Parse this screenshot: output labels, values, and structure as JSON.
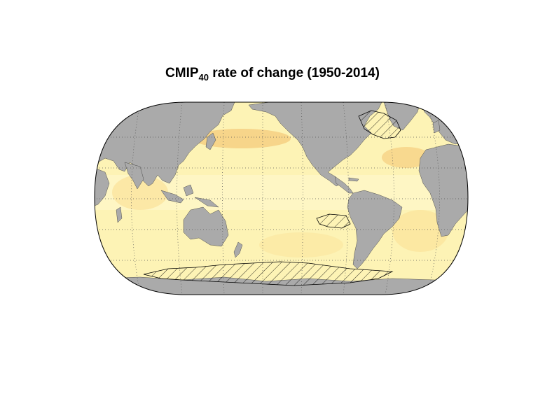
{
  "title": {
    "main": "CMIP",
    "subscript": "40",
    "rest": " rate of change (1950-2014)"
  },
  "map": {
    "projection": "Robinson-like, Pacific-centered",
    "colors": {
      "ocean_base": "#fdf3b5",
      "ocean_light": "#fff8cf",
      "ocean_warm": "#fbe39a",
      "ocean_warmer": "#f5cd7f",
      "land": "#aaaaaa",
      "border": "#000000",
      "grid": "#555555",
      "hatch": "#000000"
    },
    "graticule": "dotted",
    "stippling": "hatched regions in Southern Ocean and North Atlantic"
  }
}
